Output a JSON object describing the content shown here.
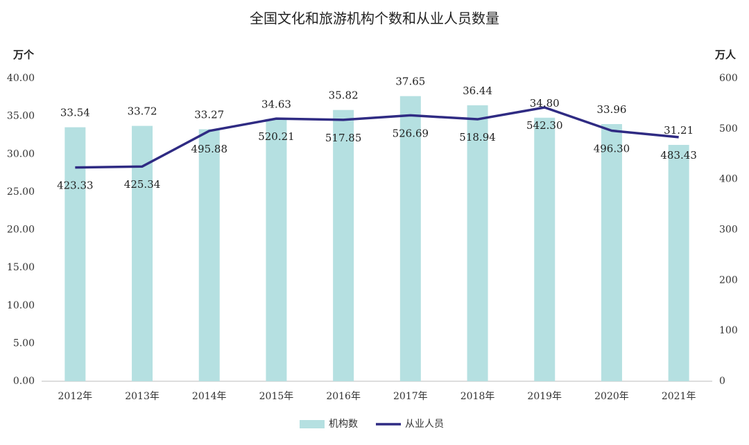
{
  "chart_data": {
    "type": "bar_line",
    "title": "全国文化和旅游机构个数和从业人员数量",
    "y_axis_title": "万个",
    "y2_axis_title": "万人",
    "categories": [
      "2012年",
      "2013年",
      "2014年",
      "2015年",
      "2016年",
      "2017年",
      "2018年",
      "2019年",
      "2020年",
      "2021年"
    ],
    "series": [
      {
        "name": "机构数",
        "type": "bar",
        "color": "#b5e0e1",
        "values": [
          33.54,
          33.72,
          33.27,
          34.63,
          35.82,
          37.65,
          36.44,
          34.8,
          33.96,
          31.21
        ],
        "value_labels": [
          "33.54",
          "33.72",
          "33.27",
          "34.63",
          "35.82",
          "37.65",
          "36.44",
          "34.80",
          "33.96",
          "31.21"
        ]
      },
      {
        "name": "从业人员",
        "type": "line",
        "axis": "y2",
        "color": "#2f2b83",
        "values": [
          423.33,
          425.34,
          495.88,
          520.21,
          517.85,
          526.69,
          518.94,
          542.3,
          496.3,
          483.43
        ],
        "value_labels": [
          "423.33",
          "425.34",
          "495.88",
          "520.21",
          "517.85",
          "526.69",
          "518.94",
          "542.30",
          "496.30",
          "483.43"
        ]
      }
    ],
    "ylim": [
      0,
      40
    ],
    "yticks": [
      {
        "value": 0,
        "label": "0.00"
      },
      {
        "value": 5,
        "label": "5.00"
      },
      {
        "value": 10,
        "label": "10.00"
      },
      {
        "value": 15,
        "label": "15.00"
      },
      {
        "value": 20,
        "label": "20.00"
      },
      {
        "value": 25,
        "label": "25.00"
      },
      {
        "value": 30,
        "label": "30.00"
      },
      {
        "value": 35,
        "label": "35.00"
      },
      {
        "value": 40,
        "label": "40.00"
      }
    ],
    "y2lim": [
      0,
      600
    ],
    "y2ticks": [
      0,
      100,
      200,
      300,
      400,
      500,
      600
    ],
    "grid": false,
    "legend": "bottom"
  }
}
